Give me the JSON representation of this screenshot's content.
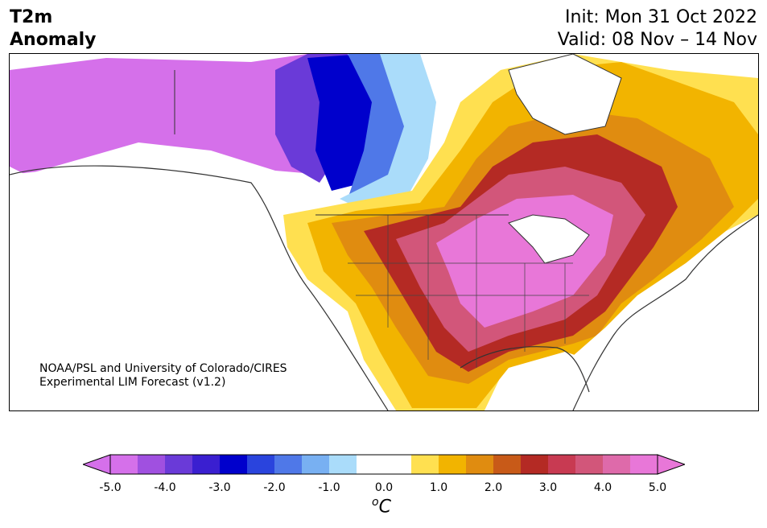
{
  "title_left": [
    "T2m",
    "Anomaly"
  ],
  "title_right": [
    "Init: Mon 31 Oct 2022",
    "Valid: 08 Nov – 14 Nov"
  ],
  "credit": [
    "NOAA/PSL and University of Colorado/CIRES",
    "Experimental LIM Forecast (v1.2)"
  ],
  "colorbar": {
    "ticks": [
      "-5.0",
      "-4.0",
      "-3.0",
      "-2.0",
      "-1.0",
      "0.0",
      "1.0",
      "2.0",
      "3.0",
      "4.0",
      "5.0"
    ],
    "unit_symbol": "o",
    "unit_letter": "C",
    "colors": [
      "#d570ea",
      "#a050e0",
      "#6a3ad8",
      "#3a1fd0",
      "#0000cc",
      "#2a44dd",
      "#4f78e8",
      "#78b0f2",
      "#aadcfa",
      "#ffffff",
      "#ffffff",
      "#ffe050",
      "#f2b400",
      "#e08c10",
      "#c85a18",
      "#b42a24",
      "#c83a52",
      "#d2567a",
      "#de6aaa",
      "#e877d8"
    ]
  },
  "legend_colors": {
    "very_cold": "#d570ea",
    "cold": "#0000cc",
    "cool": "#aadcfa",
    "neutral": "#ffffff",
    "warm": "#f2b400",
    "hot": "#b42a24",
    "very_hot": "#e877d8"
  }
}
